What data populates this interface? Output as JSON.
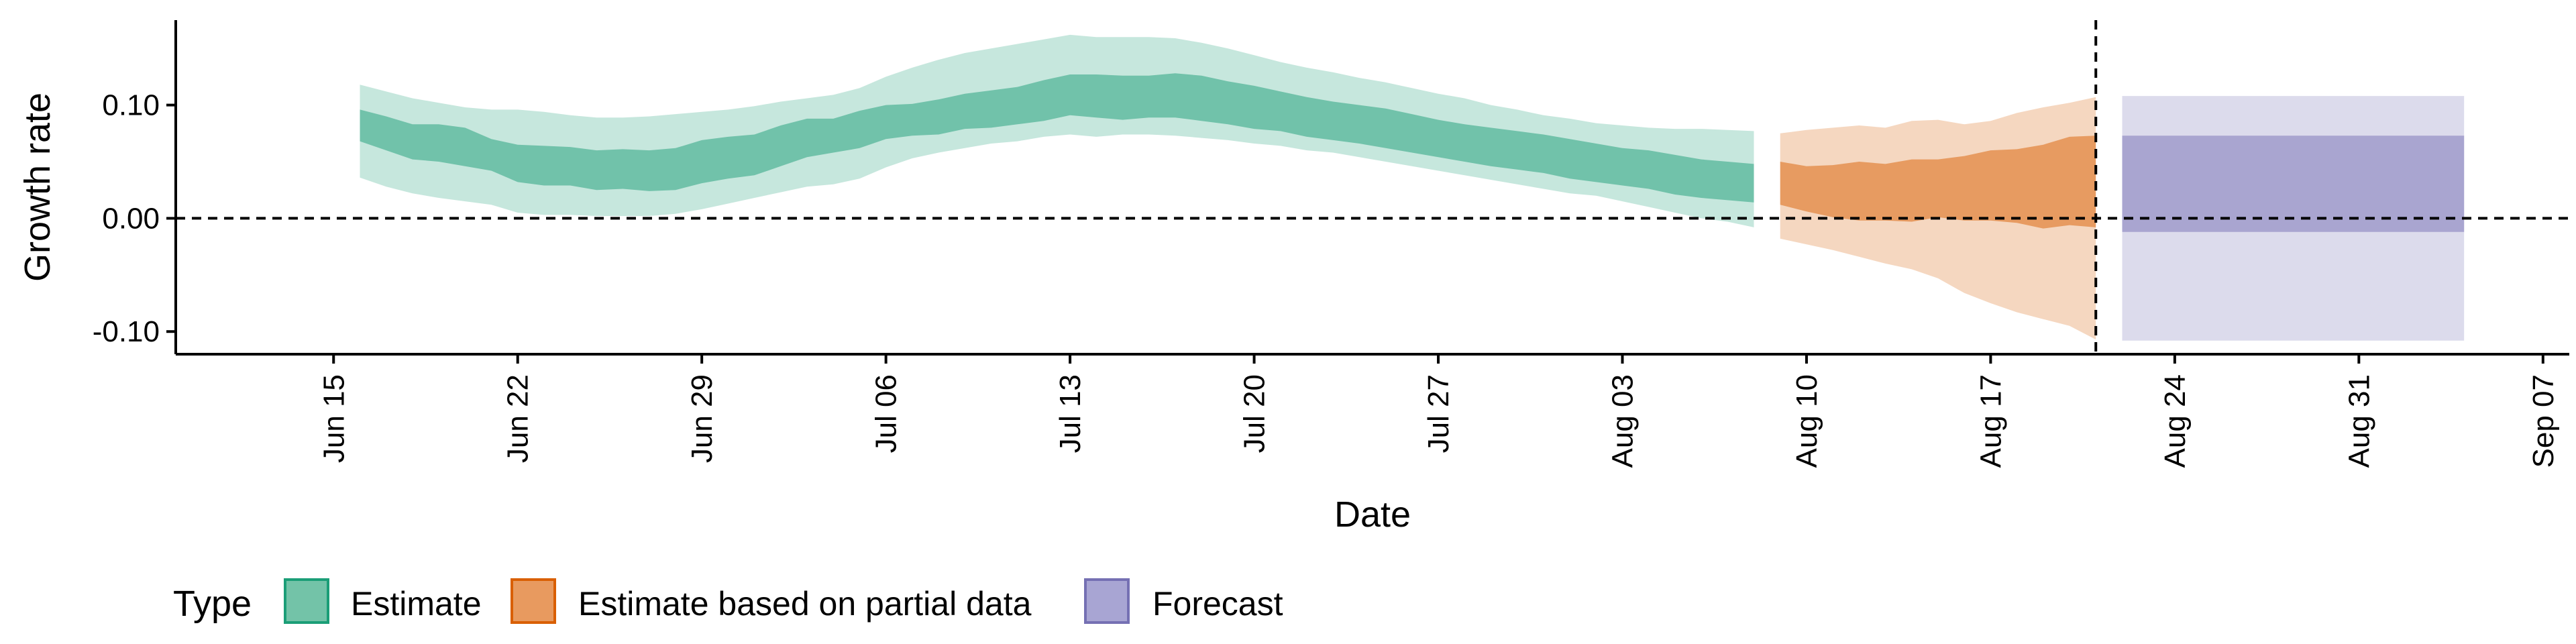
{
  "chart_data": {
    "type": "area",
    "xlabel": "Date",
    "ylabel": "Growth rate",
    "x_axis": {
      "range": [
        "2020-06-09",
        "2020-09-08"
      ],
      "ticks": [
        {
          "date": "2020-06-15",
          "label": "Jun 15"
        },
        {
          "date": "2020-06-22",
          "label": "Jun 22"
        },
        {
          "date": "2020-06-29",
          "label": "Jun 29"
        },
        {
          "date": "2020-07-06",
          "label": "Jul 06"
        },
        {
          "date": "2020-07-13",
          "label": "Jul 13"
        },
        {
          "date": "2020-07-20",
          "label": "Jul 20"
        },
        {
          "date": "2020-07-27",
          "label": "Jul 27"
        },
        {
          "date": "2020-08-03",
          "label": "Aug 03"
        },
        {
          "date": "2020-08-10",
          "label": "Aug 10"
        },
        {
          "date": "2020-08-17",
          "label": "Aug 17"
        },
        {
          "date": "2020-08-24",
          "label": "Aug 24"
        },
        {
          "date": "2020-08-31",
          "label": "Aug 31"
        },
        {
          "date": "2020-09-07",
          "label": "Sep 07"
        }
      ]
    },
    "y_axis": {
      "ylim": [
        -0.12,
        0.175
      ],
      "ticks": [
        {
          "value": -0.1,
          "label": "-0.10"
        },
        {
          "value": 0.0,
          "label": "0.00"
        },
        {
          "value": 0.1,
          "label": "0.10"
        }
      ]
    },
    "reference_lines": [
      {
        "axis": "y",
        "value": 0.0,
        "style": "dashed"
      },
      {
        "axis": "x",
        "value": "2020-08-21",
        "style": "dashed"
      }
    ],
    "grid": false,
    "legend": {
      "title": "Type",
      "position": "bottom-left",
      "entries": [
        "Estimate",
        "Estimate based on partial data",
        "Forecast"
      ]
    },
    "series": [
      {
        "name": "Estimate",
        "color": "#1b9e77",
        "dates": [
          "2020-06-16",
          "2020-06-17",
          "2020-06-18",
          "2020-06-19",
          "2020-06-20",
          "2020-06-21",
          "2020-06-22",
          "2020-06-23",
          "2020-06-24",
          "2020-06-25",
          "2020-06-26",
          "2020-06-27",
          "2020-06-28",
          "2020-06-29",
          "2020-06-30",
          "2020-07-01",
          "2020-07-02",
          "2020-07-03",
          "2020-07-04",
          "2020-07-05",
          "2020-07-06",
          "2020-07-07",
          "2020-07-08",
          "2020-07-09",
          "2020-07-10",
          "2020-07-11",
          "2020-07-12",
          "2020-07-13",
          "2020-07-14",
          "2020-07-15",
          "2020-07-16",
          "2020-07-17",
          "2020-07-18",
          "2020-07-19",
          "2020-07-20",
          "2020-07-21",
          "2020-07-22",
          "2020-07-23",
          "2020-07-24",
          "2020-07-25",
          "2020-07-26",
          "2020-07-27",
          "2020-07-28",
          "2020-07-29",
          "2020-07-30",
          "2020-07-31",
          "2020-08-01",
          "2020-08-02",
          "2020-08-03",
          "2020-08-04",
          "2020-08-05",
          "2020-08-06",
          "2020-08-07",
          "2020-08-08"
        ],
        "lower_90": [
          0.036,
          0.028,
          0.022,
          0.018,
          0.015,
          0.012,
          0.005,
          0.003,
          0.003,
          0.002,
          0.002,
          0.002,
          0.004,
          0.008,
          0.013,
          0.018,
          0.023,
          0.028,
          0.03,
          0.035,
          0.045,
          0.053,
          0.058,
          0.062,
          0.066,
          0.068,
          0.072,
          0.074,
          0.072,
          0.074,
          0.074,
          0.073,
          0.071,
          0.069,
          0.066,
          0.064,
          0.06,
          0.058,
          0.054,
          0.05,
          0.046,
          0.042,
          0.038,
          0.034,
          0.03,
          0.026,
          0.022,
          0.02,
          0.015,
          0.01,
          0.005,
          0.0,
          -0.003,
          -0.008
        ],
        "lower_50": [
          0.068,
          0.06,
          0.052,
          0.05,
          0.046,
          0.042,
          0.032,
          0.029,
          0.029,
          0.025,
          0.026,
          0.024,
          0.025,
          0.031,
          0.035,
          0.038,
          0.046,
          0.054,
          0.058,
          0.062,
          0.07,
          0.073,
          0.074,
          0.079,
          0.08,
          0.083,
          0.086,
          0.091,
          0.089,
          0.087,
          0.089,
          0.089,
          0.086,
          0.083,
          0.079,
          0.077,
          0.072,
          0.069,
          0.066,
          0.062,
          0.058,
          0.054,
          0.05,
          0.046,
          0.043,
          0.04,
          0.035,
          0.032,
          0.029,
          0.026,
          0.021,
          0.018,
          0.016,
          0.014
        ],
        "upper_50": [
          0.096,
          0.09,
          0.083,
          0.083,
          0.08,
          0.07,
          0.065,
          0.064,
          0.063,
          0.06,
          0.061,
          0.06,
          0.062,
          0.069,
          0.072,
          0.074,
          0.082,
          0.088,
          0.088,
          0.095,
          0.1,
          0.101,
          0.105,
          0.11,
          0.113,
          0.116,
          0.122,
          0.127,
          0.127,
          0.126,
          0.126,
          0.128,
          0.126,
          0.121,
          0.117,
          0.112,
          0.107,
          0.103,
          0.1,
          0.097,
          0.092,
          0.087,
          0.083,
          0.08,
          0.077,
          0.074,
          0.07,
          0.066,
          0.062,
          0.06,
          0.056,
          0.052,
          0.05,
          0.048
        ],
        "upper_90": [
          0.118,
          0.112,
          0.106,
          0.102,
          0.098,
          0.096,
          0.096,
          0.094,
          0.091,
          0.089,
          0.089,
          0.09,
          0.092,
          0.094,
          0.096,
          0.099,
          0.103,
          0.106,
          0.109,
          0.115,
          0.125,
          0.133,
          0.14,
          0.146,
          0.15,
          0.154,
          0.158,
          0.162,
          0.16,
          0.16,
          0.16,
          0.159,
          0.155,
          0.15,
          0.144,
          0.138,
          0.133,
          0.129,
          0.124,
          0.12,
          0.115,
          0.11,
          0.106,
          0.1,
          0.096,
          0.091,
          0.088,
          0.084,
          0.082,
          0.08,
          0.079,
          0.079,
          0.078,
          0.077
        ]
      },
      {
        "name": "Estimate based on partial data",
        "color": "#d95f02",
        "dates": [
          "2020-08-09",
          "2020-08-10",
          "2020-08-11",
          "2020-08-12",
          "2020-08-13",
          "2020-08-14",
          "2020-08-15",
          "2020-08-16",
          "2020-08-17",
          "2020-08-18",
          "2020-08-19",
          "2020-08-20",
          "2020-08-21"
        ],
        "lower_90": [
          -0.018,
          -0.023,
          -0.028,
          -0.034,
          -0.04,
          -0.045,
          -0.053,
          -0.066,
          -0.075,
          -0.083,
          -0.089,
          -0.095,
          -0.107
        ],
        "lower_50": [
          0.012,
          0.006,
          0.001,
          -0.002,
          -0.002,
          -0.003,
          0.001,
          -0.002,
          -0.002,
          -0.004,
          -0.009,
          -0.006,
          -0.008
        ],
        "upper_50": [
          0.05,
          0.046,
          0.047,
          0.05,
          0.048,
          0.052,
          0.052,
          0.055,
          0.06,
          0.061,
          0.065,
          0.072,
          0.073
        ],
        "upper_90": [
          0.075,
          0.078,
          0.08,
          0.082,
          0.08,
          0.086,
          0.087,
          0.083,
          0.086,
          0.093,
          0.098,
          0.102,
          0.107
        ]
      },
      {
        "name": "Forecast",
        "color": "#7570b3",
        "dates": [
          "2020-08-22",
          "2020-09-04"
        ],
        "lower_90": [
          -0.108,
          -0.108
        ],
        "lower_50": [
          -0.012,
          -0.012
        ],
        "upper_50": [
          0.073,
          0.073
        ],
        "upper_90": [
          0.108,
          0.108
        ]
      }
    ]
  },
  "legend_swatch_colors": {
    "Estimate": {
      "fill": "#73c3a8",
      "stroke": "#1b9e77"
    },
    "Estimate based on partial data": {
      "fill": "#e89a5f",
      "stroke": "#d95f02"
    },
    "Forecast": {
      "fill": "#a8a5d3",
      "stroke": "#7570b3"
    }
  }
}
